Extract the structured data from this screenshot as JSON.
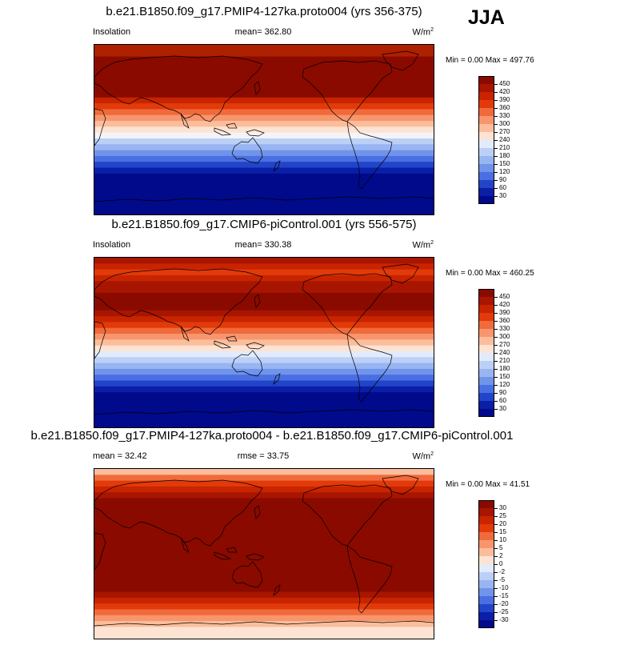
{
  "season_label": "JJA",
  "panels": [
    {
      "title": "b.e21.B1850.f09_g17.PMIP4-127ka.proto004 (yrs 356-375)",
      "left_label": "Insolation",
      "mid_label": "mean= 362.80",
      "unit": "W/m",
      "unit_sup": "2",
      "min_max": "Min =   0.00 Max = 497.76",
      "colorbar": {
        "ticks": [
          "450",
          "420",
          "390",
          "360",
          "330",
          "300",
          "270",
          "240",
          "210",
          "180",
          "150",
          "120",
          "90",
          "60",
          "30"
        ],
        "colors": [
          "#8a0a00",
          "#a81500",
          "#c82400",
          "#e23a0a",
          "#f06a3c",
          "#f8956c",
          "#fbbd9c",
          "#fde3d2",
          "#e2ebfb",
          "#bcd0f7",
          "#98b5f2",
          "#7094ea",
          "#4a6fe2",
          "#2244c8",
          "#0a1fa8",
          "#000a8a"
        ]
      },
      "bands": [
        "#ad2000",
        "#ad2000",
        "#8a0a00",
        "#8a0a00",
        "#8a0a00",
        "#8a0a00",
        "#8a0a00",
        "#8a0a00",
        "#8a0a00",
        "#c82400",
        "#e23a0a",
        "#f06a3c",
        "#f8956c",
        "#fbbd9c",
        "#fde3d2",
        "#f4f4f8",
        "#bcd0f7",
        "#98b5f2",
        "#7094ea",
        "#4a6fe2",
        "#2244c8",
        "#0a1fa8",
        "#000a8a",
        "#000a8a",
        "#000a8a",
        "#000a8a",
        "#000a8a",
        "#000a8a",
        "#000a8a"
      ]
    },
    {
      "title": "b.e21.B1850.f09_g17.CMIP6-piControl.001 (yrs 556-575)",
      "left_label": "Insolation",
      "mid_label": "mean= 330.38",
      "unit": "W/m",
      "unit_sup": "2",
      "min_max": "Min =   0.00 Max = 460.25",
      "colorbar": {
        "ticks": [
          "450",
          "420",
          "390",
          "360",
          "330",
          "300",
          "270",
          "240",
          "210",
          "180",
          "150",
          "120",
          "90",
          "60",
          "30"
        ],
        "colors": [
          "#8a0a00",
          "#a81500",
          "#c82400",
          "#e23a0a",
          "#f06a3c",
          "#f8956c",
          "#fbbd9c",
          "#fde3d2",
          "#e2ebfb",
          "#bcd0f7",
          "#98b5f2",
          "#7094ea",
          "#4a6fe2",
          "#2244c8",
          "#0a1fa8",
          "#000a8a"
        ]
      },
      "bands": [
        "#a81500",
        "#c82400",
        "#e23a0a",
        "#c82400",
        "#a81500",
        "#a81500",
        "#8a0a00",
        "#8a0a00",
        "#8a0a00",
        "#a81500",
        "#c82400",
        "#e23a0a",
        "#f06a3c",
        "#f8956c",
        "#fbbd9c",
        "#fde3d2",
        "#e2ebfb",
        "#bcd0f7",
        "#98b5f2",
        "#7094ea",
        "#4a6fe2",
        "#2244c8",
        "#0a1fa8",
        "#000a8a",
        "#000a8a",
        "#000a8a",
        "#000a8a",
        "#000a8a",
        "#000a8a"
      ]
    },
    {
      "title": "b.e21.B1850.f09_g17.PMIP4-127ka.proto004 - b.e21.B1850.f09_g17.CMIP6-piControl.001",
      "left_label": "mean =  32.42",
      "mid_label": "rmse =  33.75",
      "unit": "W/m",
      "unit_sup": "2",
      "min_max": "Min =   0.00 Max =  41.51",
      "colorbar": {
        "ticks": [
          "30",
          "25",
          "20",
          "15",
          "10",
          "5",
          "2",
          "0",
          "-2",
          "-5",
          "-10",
          "-15",
          "-20",
          "-25",
          "-30"
        ],
        "colors": [
          "#8a0a00",
          "#a81500",
          "#c82400",
          "#e23a0a",
          "#f06a3c",
          "#f8956c",
          "#fbbd9c",
          "#fde3d2",
          "#e2ebfb",
          "#bcd0f7",
          "#98b5f2",
          "#7094ea",
          "#4a6fe2",
          "#2244c8",
          "#0a1fa8",
          "#000a8a"
        ]
      },
      "bands": [
        "#fbbd9c",
        "#f06a3c",
        "#e23a0a",
        "#c82400",
        "#a81500",
        "#8a0a00",
        "#8a0a00",
        "#8a0a00",
        "#8a0a00",
        "#8a0a00",
        "#8a0a00",
        "#8a0a00",
        "#8a0a00",
        "#8a0a00",
        "#8a0a00",
        "#8a0a00",
        "#8a0a00",
        "#8a0a00",
        "#8a0a00",
        "#8a0a00",
        "#8a0a00",
        "#a81500",
        "#c82400",
        "#e23a0a",
        "#f06a3c",
        "#f8956c",
        "#fbbd9c",
        "#fde3d2",
        "#fde3d2"
      ]
    }
  ]
}
